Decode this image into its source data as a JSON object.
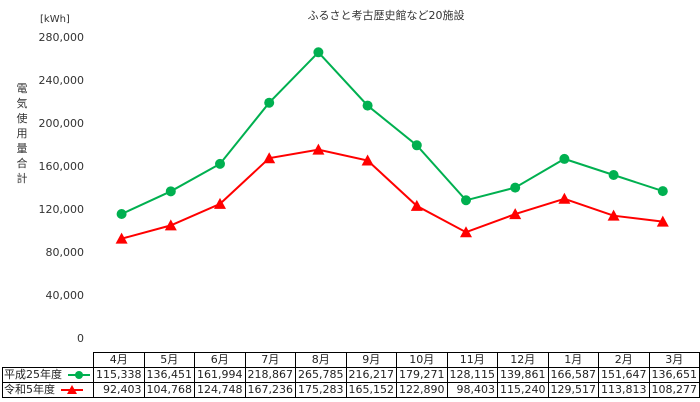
{
  "chart_data": {
    "type": "line",
    "title": "ふるさと考古歴史館など20施設",
    "unit_label": "[kWh]",
    "ylabel": "電気使用量合計",
    "ylim": [
      0,
      280000
    ],
    "yticks": [
      "0",
      "40,000",
      "80,000",
      "120,000",
      "160,000",
      "200,000",
      "240,000",
      "280,000"
    ],
    "categories": [
      "4月",
      "5月",
      "6月",
      "7月",
      "8月",
      "9月",
      "10月",
      "11月",
      "12月",
      "1月",
      "2月",
      "3月"
    ],
    "grid": false,
    "legend": "table",
    "series": [
      {
        "name": "平成25年度",
        "color": "#00b050",
        "marker": "circle",
        "values": [
          115338,
          136451,
          161994,
          218867,
          265785,
          216217,
          179271,
          128115,
          139861,
          166587,
          151647,
          136651
        ],
        "labels": [
          "115,338",
          "136,451",
          "161,994",
          "218,867",
          "265,785",
          "216,217",
          "179,271",
          "128,115",
          "139,861",
          "166,587",
          "151,647",
          "136,651"
        ]
      },
      {
        "name": "令和5年度",
        "color": "#ff0000",
        "marker": "triangle",
        "values": [
          92403,
          104768,
          124748,
          167236,
          175283,
          165152,
          122890,
          98403,
          115240,
          129517,
          113813,
          108277
        ],
        "labels": [
          "92,403",
          "104,768",
          "124,748",
          "167,236",
          "175,283",
          "165,152",
          "122,890",
          "98,403",
          "115,240",
          "129,517",
          "113,813",
          "108,277"
        ]
      }
    ]
  }
}
